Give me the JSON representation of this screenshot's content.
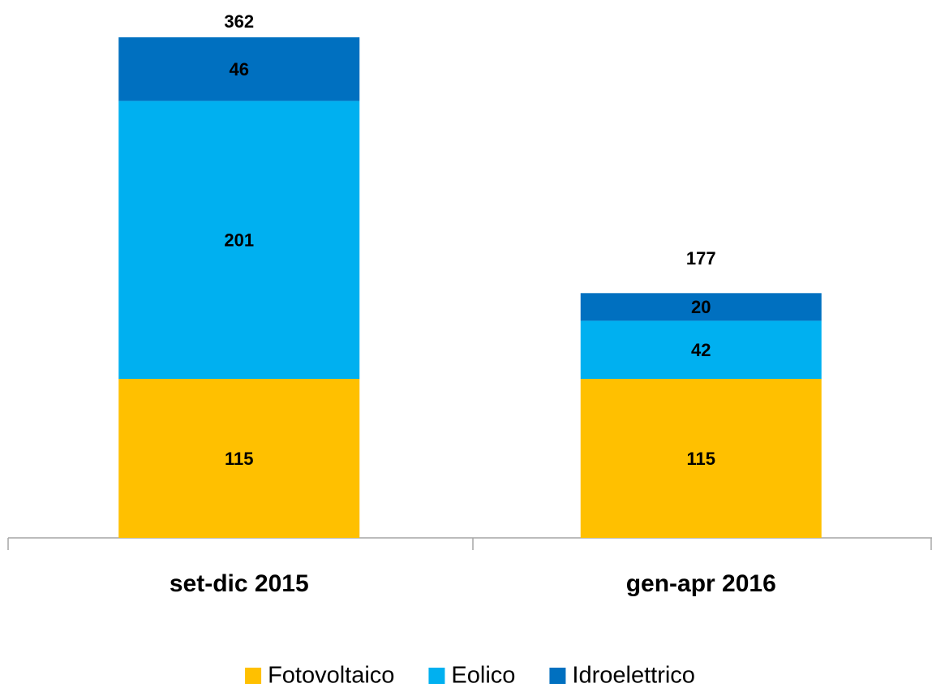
{
  "chart_data": {
    "type": "stacked_bar",
    "categories": [
      "set-dic 2015",
      "gen-apr 2016"
    ],
    "series": [
      {
        "name": "Fotovoltaico",
        "color": "#FFC000",
        "values": [
          115,
          115
        ]
      },
      {
        "name": "Eolico",
        "color": "#00B0F0",
        "values": [
          201,
          42
        ]
      },
      {
        "name": "Idroelettrico",
        "color": "#0070C0",
        "values": [
          46,
          20
        ]
      }
    ],
    "totals": [
      362,
      177
    ],
    "legend": "bottom"
  }
}
